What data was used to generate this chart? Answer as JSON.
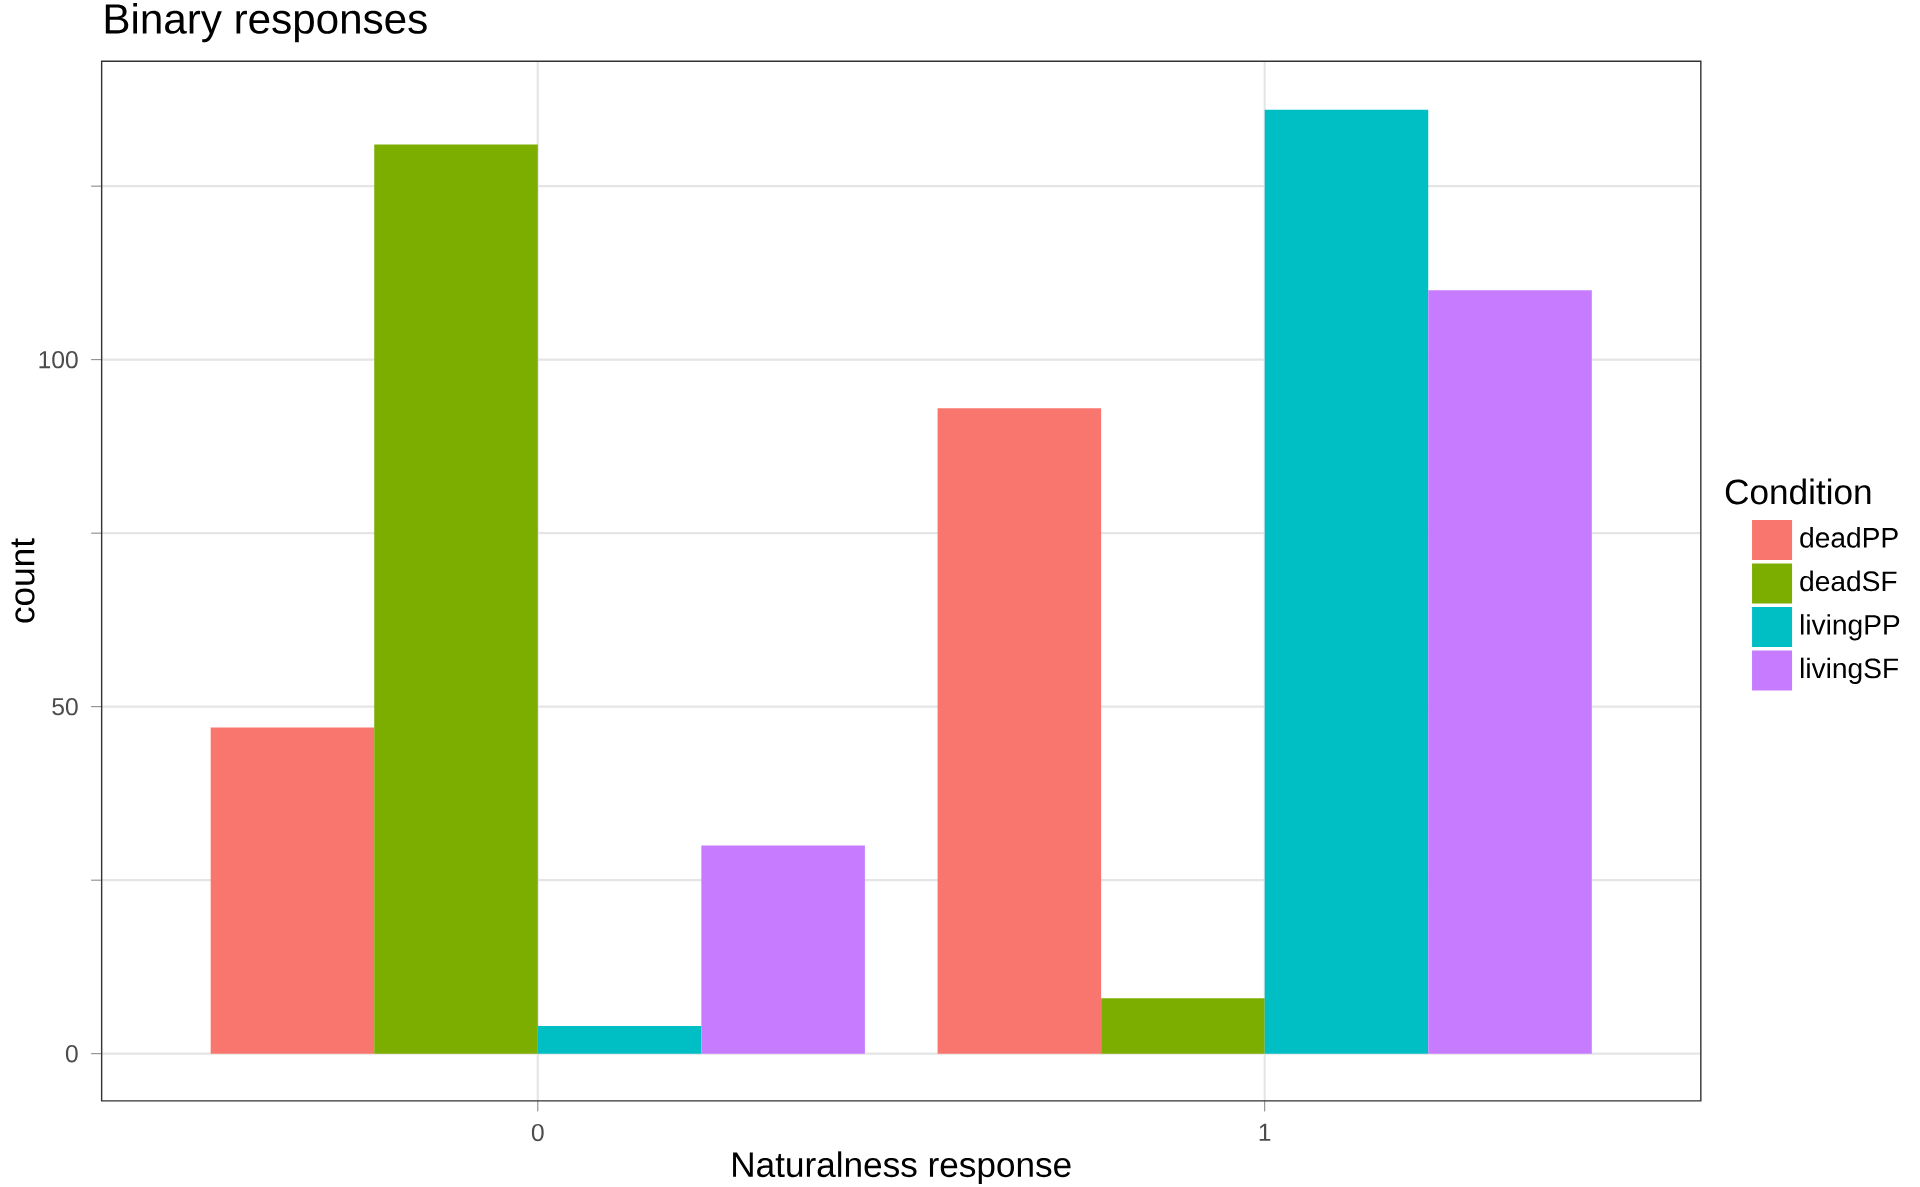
{
  "chart_data": {
    "type": "bar",
    "title": "Binary responses",
    "xlabel": "Naturalness response",
    "ylabel": "count",
    "legend_title": "Condition",
    "categories": [
      "0",
      "1"
    ],
    "series": [
      {
        "name": "deadPP",
        "color": "#f8766d",
        "values": [
          47,
          93
        ]
      },
      {
        "name": "deadSF",
        "color": "#7cae00",
        "values": [
          131,
          8
        ]
      },
      {
        "name": "livingPP",
        "color": "#00bfc4",
        "values": [
          4,
          136
        ]
      },
      {
        "name": "livingSF",
        "color": "#c77cff",
        "values": [
          30,
          110
        ]
      }
    ],
    "ylim": [
      -6.8,
      143
    ],
    "yticks": [
      0,
      {
        "value": 25,
        "label": null
      },
      50,
      {
        "value": 75,
        "label": null
      },
      100,
      {
        "value": 125,
        "label": null
      }
    ],
    "grid": true,
    "legend": "right"
  }
}
